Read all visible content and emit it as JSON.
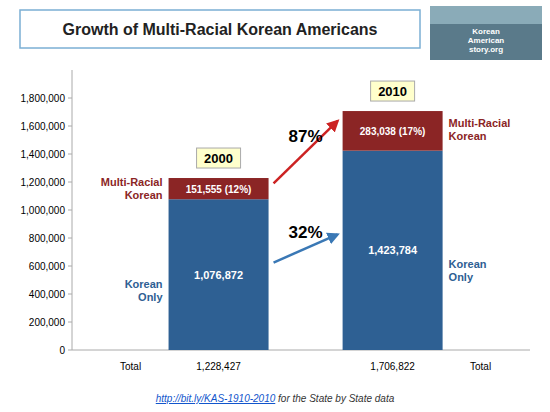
{
  "chart_data": {
    "type": "bar",
    "stacked": true,
    "title": "Growth of Multi-Racial Korean Americans",
    "categories": [
      "2000",
      "2010"
    ],
    "series": [
      {
        "name": "Korean Only",
        "color": "#2E6093",
        "values": [
          1076872,
          1423784
        ],
        "value_labels": [
          "1,076,872",
          "1,423,784"
        ]
      },
      {
        "name": "Multi-Racial Korean",
        "color": "#8B2525",
        "values": [
          151555,
          283038
        ],
        "value_labels": [
          "151,555 (12%)",
          "283,038 (17%)"
        ]
      }
    ],
    "data_labels": true,
    "grid": false,
    "ylim": [
      0,
      2000000
    ],
    "yticks": [
      0,
      {
        "value": 200000,
        "label": "200,000"
      },
      {
        "value": 400000,
        "label": "400,000"
      },
      {
        "value": 600000,
        "label": "600,000"
      },
      {
        "value": 800000,
        "label": "800,000"
      },
      {
        "value": 1000000,
        "label": "1,000,000"
      },
      {
        "value": 1200000,
        "label": "1,200,000"
      },
      {
        "value": 1400000,
        "label": "1,400,000"
      },
      {
        "value": 1600000,
        "label": "1,600,000"
      },
      {
        "value": 1800000,
        "label": "1,800,000"
      }
    ],
    "totals": [
      1228427,
      1706822
    ],
    "total_labels": [
      "1,228,427",
      "1,706,822"
    ],
    "total_label": "Total",
    "annotations": [
      {
        "text": "32%",
        "color": "#3A78B5"
      },
      {
        "text": "87%",
        "color": "#CC2222"
      }
    ],
    "footer": {
      "url": "http://bit.ly/KAS-1910-2010",
      "text": " for the State by State data"
    },
    "logo_text": "Korean\nAmerican\nstory.org"
  }
}
